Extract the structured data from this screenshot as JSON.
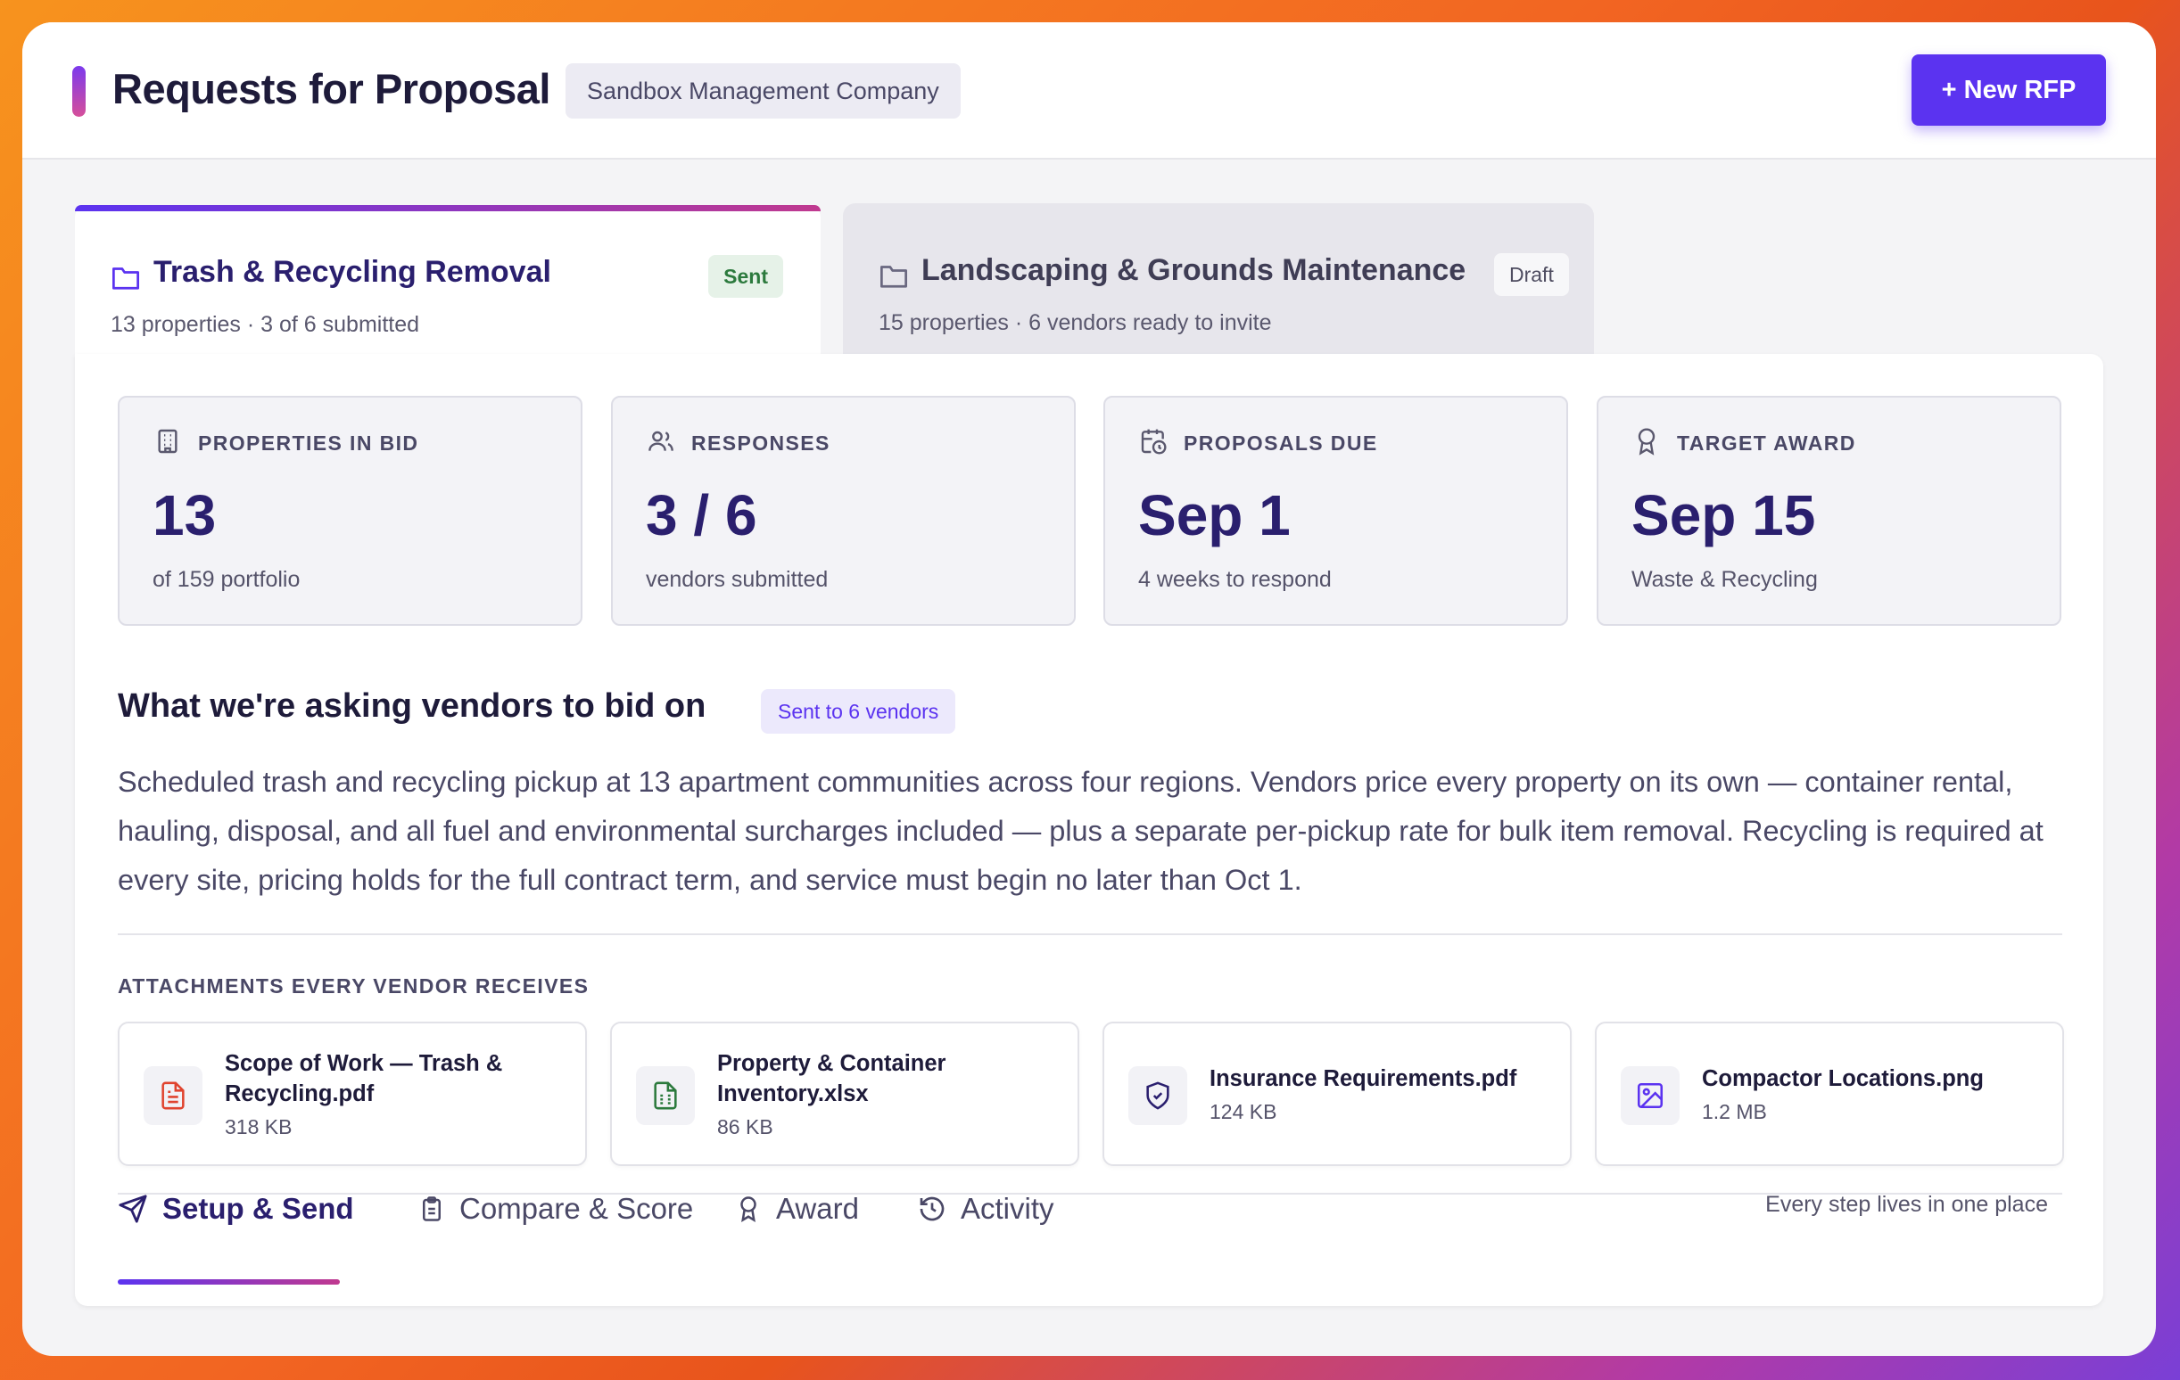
{
  "header": {
    "title": "Requests for Proposal",
    "company": "Sandbox Management Company",
    "new_button": "+ New RFP"
  },
  "rfps": [
    {
      "name": "Trash & Recycling Removal",
      "status": "Sent",
      "summary": "13 properties · 3 of 6 submitted",
      "active": true
    },
    {
      "name": "Landscaping & Grounds Maintenance",
      "status": "Draft",
      "summary": "15 properties · 6 vendors ready to invite",
      "active": false
    }
  ],
  "stats": [
    {
      "icon": "building-icon",
      "label": "PROPERTIES IN BID",
      "value": "13",
      "sub": "of 159 portfolio"
    },
    {
      "icon": "users-icon",
      "label": "RESPONSES",
      "value": "3 / 6",
      "sub": "vendors submitted"
    },
    {
      "icon": "calendar-clock-icon",
      "label": "PROPOSALS DUE",
      "value": "Sep 1",
      "sub": "4 weeks to respond"
    },
    {
      "icon": "award-icon",
      "label": "TARGET AWARD",
      "value": "Sep 15",
      "sub": "Waste & Recycling"
    }
  ],
  "scope": {
    "title": "What we're asking vendors to bid on",
    "chip": "Sent to 6 vendors",
    "description": "Scheduled trash and recycling pickup at 13 apartment communities across four regions. Vendors price every property on its own — container rental, hauling, disposal, and all fuel and environmental surcharges included — plus a separate per-pickup rate for bulk item removal. Recycling is required at every site, pricing holds for the full contract term, and service must begin no later than Oct 1."
  },
  "attachments": {
    "heading": "ATTACHMENTS EVERY VENDOR RECEIVES",
    "items": [
      {
        "icon": "pdf-file-icon",
        "name": "Scope of Work — Trash & Recycling.pdf",
        "size": "318 KB",
        "color": "#e0442f"
      },
      {
        "icon": "spreadsheet-file-icon",
        "name": "Property & Container Inventory.xlsx",
        "size": "86 KB",
        "color": "#2c7a3d"
      },
      {
        "icon": "shield-icon",
        "name": "Insurance Requirements.pdf",
        "size": "124 KB",
        "color": "#2a1f6e"
      },
      {
        "icon": "image-file-icon",
        "name": "Compactor Locations.png",
        "size": "1.2 MB",
        "color": "#5b33f0"
      }
    ]
  },
  "workflow_tabs": [
    {
      "icon": "send-icon",
      "label": "Setup & Send",
      "active": true
    },
    {
      "icon": "clipboard-icon",
      "label": "Compare & Score",
      "active": false
    },
    {
      "icon": "award-icon",
      "label": "Award",
      "active": false
    },
    {
      "icon": "history-icon",
      "label": "Activity",
      "active": false
    }
  ],
  "footnote": "Every step lives in one place",
  "colors": {
    "accent": "#5b33f0",
    "heading": "#2a1f6e",
    "sent_green": "#2c7a3d"
  }
}
